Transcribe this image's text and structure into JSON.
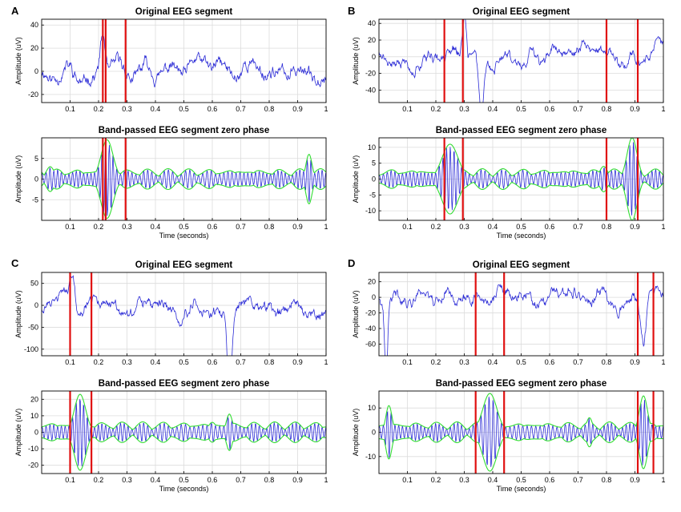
{
  "figure": {
    "panels": [
      {
        "label": "A",
        "top": {
          "title": "Original EEG segment",
          "ylabel": "Amplitude (uV)",
          "xlabel": "",
          "yticks": [
            -20,
            0,
            20,
            40
          ],
          "ylim": [
            -27,
            45
          ],
          "seed": 11,
          "kind": "raw-spiky",
          "events": [
            {
              "t": 0.215,
              "amp": 1.0,
              "w": 0.012
            }
          ]
        },
        "bottom": {
          "title": "Band-passed EEG segment zero phase",
          "ylabel": "Amplitude (uV)",
          "xlabel": "Time (seconds)",
          "yticks": [
            -5,
            0,
            5
          ],
          "ylim": [
            -10,
            10
          ],
          "seed": 12,
          "bursts": [
            {
              "t": 0.23,
              "a": 9.5,
              "w": 0.03
            },
            {
              "t": 0.94,
              "a": 6,
              "w": 0.015
            },
            {
              "t": 0.03,
              "a": 3,
              "w": 0.02
            }
          ]
        },
        "markers": [
          0.215,
          0.225,
          0.295
        ],
        "xticks": [
          0.1,
          0.2,
          0.3,
          0.4,
          0.5,
          0.6,
          0.7,
          0.8,
          0.9,
          1
        ]
      },
      {
        "label": "B",
        "top": {
          "title": "Original EEG segment",
          "ylabel": "Amplitude (uV)",
          "xlabel": "",
          "yticks": [
            -40,
            -20,
            0,
            20,
            40
          ],
          "ylim": [
            -55,
            45
          ],
          "seed": 21,
          "kind": "raw",
          "events": [
            {
              "t": 0.36,
              "amp": -1.6,
              "w": 0.012
            },
            {
              "t": 0.3,
              "amp": 1.0,
              "w": 0.01
            }
          ]
        },
        "bottom": {
          "title": "Band-passed EEG segment zero phase",
          "ylabel": "Amplitude (uV)",
          "xlabel": "Time (seconds)",
          "yticks": [
            -10,
            -5,
            0,
            5,
            10
          ],
          "ylim": [
            -13,
            13
          ],
          "seed": 22,
          "bursts": [
            {
              "t": 0.25,
              "a": 11,
              "w": 0.04
            },
            {
              "t": 0.89,
              "a": 13,
              "w": 0.025
            },
            {
              "t": 0.79,
              "a": 4,
              "w": 0.02
            }
          ]
        },
        "markers": [
          0.23,
          0.295,
          0.8,
          0.91
        ],
        "xticks": [
          0.1,
          0.2,
          0.3,
          0.4,
          0.5,
          0.6,
          0.7,
          0.8,
          0.9,
          1
        ]
      },
      {
        "label": "C",
        "top": {
          "title": "Original EEG segment",
          "ylabel": "Amplitude (uV)",
          "xlabel": "",
          "yticks": [
            -100,
            -50,
            0,
            50
          ],
          "ylim": [
            -115,
            75
          ],
          "seed": 31,
          "kind": "raw-slow",
          "events": [
            {
              "t": 0.66,
              "amp": -2.2,
              "w": 0.01
            },
            {
              "t": 0.11,
              "amp": 1.0,
              "w": 0.012
            }
          ]
        },
        "bottom": {
          "title": "Band-passed EEG segment zero phase",
          "ylabel": "Amplitude (uV)",
          "xlabel": "Time (seconds)",
          "yticks": [
            -20,
            -10,
            0,
            10,
            20
          ],
          "ylim": [
            -25,
            25
          ],
          "seed": 32,
          "bursts": [
            {
              "t": 0.135,
              "a": 23,
              "w": 0.028
            },
            {
              "t": 0.66,
              "a": 11,
              "w": 0.015
            },
            {
              "t": 0.6,
              "a": 6,
              "w": 0.02
            }
          ]
        },
        "markers": [
          0.1,
          0.175
        ],
        "xticks": [
          0.1,
          0.2,
          0.3,
          0.4,
          0.5,
          0.6,
          0.7,
          0.8,
          0.9,
          1
        ]
      },
      {
        "label": "D",
        "top": {
          "title": "Original EEG segment",
          "ylabel": "Amplitude (uV)",
          "xlabel": "",
          "yticks": [
            -60,
            -40,
            -20,
            0,
            20
          ],
          "ylim": [
            -75,
            32
          ],
          "seed": 41,
          "kind": "raw",
          "events": [
            {
              "t": 0.025,
              "amp": -2.0,
              "w": 0.008
            },
            {
              "t": 0.93,
              "amp": -1.2,
              "w": 0.015
            }
          ]
        },
        "bottom": {
          "title": "Band-passed EEG segment zero phase",
          "ylabel": "Amplitude (uV)",
          "xlabel": "Time (seconds)",
          "yticks": [
            -10,
            0,
            10
          ],
          "ylim": [
            -17,
            17
          ],
          "seed": 42,
          "bursts": [
            {
              "t": 0.39,
              "a": 16,
              "w": 0.035
            },
            {
              "t": 0.93,
              "a": 15,
              "w": 0.02
            },
            {
              "t": 0.035,
              "a": 11,
              "w": 0.015
            },
            {
              "t": 0.74,
              "a": 6,
              "w": 0.015
            }
          ]
        },
        "markers": [
          0.34,
          0.44,
          0.91,
          0.965
        ],
        "xticks": [
          0.1,
          0.2,
          0.3,
          0.4,
          0.5,
          0.6,
          0.7,
          0.8,
          0.9,
          1
        ]
      }
    ]
  },
  "chart_data": [
    {
      "type": "line",
      "panel": "A",
      "title": "Original EEG segment",
      "xlabel": "",
      "ylabel": "Amplitude (uV)",
      "xlim": [
        0,
        1
      ],
      "ylim": [
        -27,
        45
      ],
      "grid": true,
      "x_ticks": [
        0.1,
        0.2,
        0.3,
        0.4,
        0.5,
        0.6,
        0.7,
        0.8,
        0.9,
        1
      ],
      "y_ticks": [
        -20,
        0,
        20,
        40
      ],
      "vertical_markers_s": [
        0.215,
        0.225,
        0.295
      ]
    },
    {
      "type": "line",
      "panel": "A",
      "title": "Band-passed EEG segment zero phase",
      "xlabel": "Time (seconds)",
      "ylabel": "Amplitude (uV)",
      "xlim": [
        0,
        1
      ],
      "ylim": [
        -10,
        10
      ],
      "grid": true,
      "x_ticks": [
        0.1,
        0.2,
        0.3,
        0.4,
        0.5,
        0.6,
        0.7,
        0.8,
        0.9,
        1
      ],
      "y_ticks": [
        -5,
        0,
        5
      ],
      "vertical_markers_s": [
        0.215,
        0.225,
        0.295
      ]
    },
    {
      "type": "line",
      "panel": "B",
      "title": "Original EEG segment",
      "xlabel": "",
      "ylabel": "Amplitude (uV)",
      "xlim": [
        0,
        1
      ],
      "ylim": [
        -55,
        45
      ],
      "grid": true,
      "x_ticks": [
        0.1,
        0.2,
        0.3,
        0.4,
        0.5,
        0.6,
        0.7,
        0.8,
        0.9,
        1
      ],
      "y_ticks": [
        -40,
        -20,
        0,
        20,
        40
      ],
      "vertical_markers_s": [
        0.23,
        0.295,
        0.8,
        0.91
      ]
    },
    {
      "type": "line",
      "panel": "B",
      "title": "Band-passed EEG segment zero phase",
      "xlabel": "Time (seconds)",
      "ylabel": "Amplitude (uV)",
      "xlim": [
        0,
        1
      ],
      "ylim": [
        -13,
        13
      ],
      "grid": true,
      "x_ticks": [
        0.1,
        0.2,
        0.3,
        0.4,
        0.5,
        0.6,
        0.7,
        0.8,
        0.9,
        1
      ],
      "y_ticks": [
        -10,
        -5,
        0,
        5,
        10
      ],
      "vertical_markers_s": [
        0.23,
        0.295,
        0.8,
        0.91
      ]
    },
    {
      "type": "line",
      "panel": "C",
      "title": "Original EEG segment",
      "xlabel": "",
      "ylabel": "Amplitude (uV)",
      "xlim": [
        0,
        1
      ],
      "ylim": [
        -115,
        75
      ],
      "grid": true,
      "x_ticks": [
        0.1,
        0.2,
        0.3,
        0.4,
        0.5,
        0.6,
        0.7,
        0.8,
        0.9,
        1
      ],
      "y_ticks": [
        -100,
        -50,
        0,
        50
      ],
      "vertical_markers_s": [
        0.1,
        0.175
      ]
    },
    {
      "type": "line",
      "panel": "C",
      "title": "Band-passed EEG segment zero phase",
      "xlabel": "Time (seconds)",
      "ylabel": "Amplitude (uV)",
      "xlim": [
        0,
        1
      ],
      "ylim": [
        -25,
        25
      ],
      "grid": true,
      "x_ticks": [
        0.1,
        0.2,
        0.3,
        0.4,
        0.5,
        0.6,
        0.7,
        0.8,
        0.9,
        1
      ],
      "y_ticks": [
        -20,
        -10,
        0,
        10,
        20
      ],
      "vertical_markers_s": [
        0.1,
        0.175
      ]
    },
    {
      "type": "line",
      "panel": "D",
      "title": "Original EEG segment",
      "xlabel": "",
      "ylabel": "Amplitude (uV)",
      "xlim": [
        0,
        1
      ],
      "ylim": [
        -75,
        32
      ],
      "grid": true,
      "x_ticks": [
        0.1,
        0.2,
        0.3,
        0.4,
        0.5,
        0.6,
        0.7,
        0.8,
        0.9,
        1
      ],
      "y_ticks": [
        -60,
        -40,
        -20,
        0,
        20
      ],
      "vertical_markers_s": [
        0.34,
        0.44,
        0.91,
        0.965
      ]
    },
    {
      "type": "line",
      "panel": "D",
      "title": "Band-passed EEG segment zero phase",
      "xlabel": "Time (seconds)",
      "ylabel": "Amplitude (uV)",
      "xlim": [
        0,
        1
      ],
      "ylim": [
        -17,
        17
      ],
      "grid": true,
      "x_ticks": [
        0.1,
        0.2,
        0.3,
        0.4,
        0.5,
        0.6,
        0.7,
        0.8,
        0.9,
        1
      ],
      "y_ticks": [
        -10,
        0,
        10
      ],
      "vertical_markers_s": [
        0.34,
        0.44,
        0.91,
        0.965
      ]
    }
  ],
  "colors": {
    "signal": "#2b2bd6",
    "envelope": "#33dd33",
    "marker": "#e01010",
    "grid": "#dcdcdc",
    "axis": "#000000"
  }
}
